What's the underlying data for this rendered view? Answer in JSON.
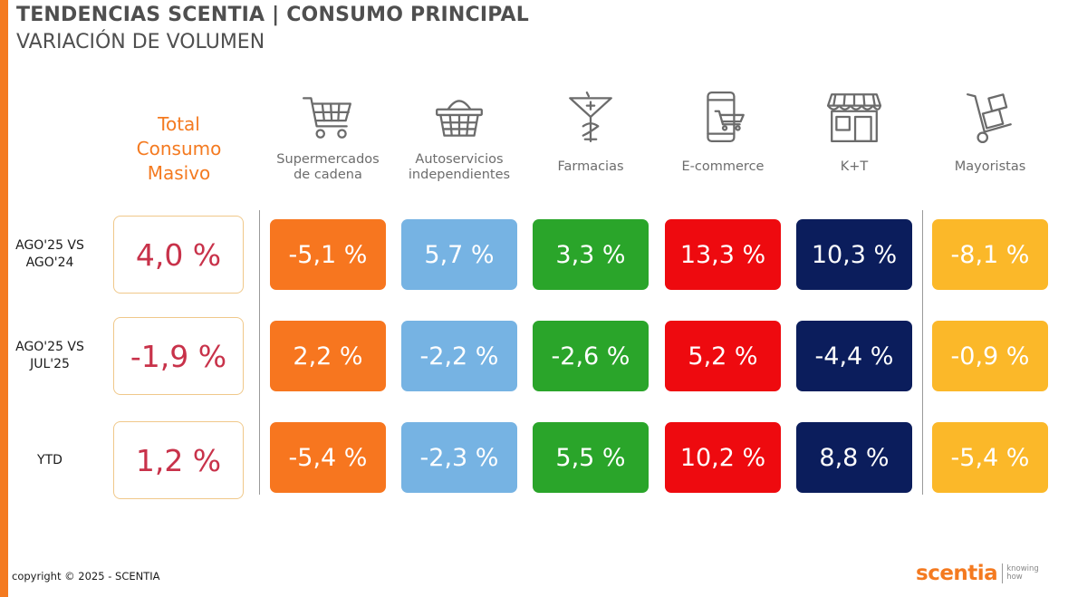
{
  "header": {
    "title": "TENDENCIAS SCENTIA  | CONSUMO PRINCIPAL",
    "subtitle": "VARIACIÓN DE VOLUMEN"
  },
  "total_header": [
    "Total",
    "Consumo",
    "Masivo"
  ],
  "columns": [
    {
      "label_lines": [
        "Supermercados",
        "de cadena"
      ],
      "icon": "shopping-cart-icon",
      "color": "#f7761f"
    },
    {
      "label_lines": [
        "Autoservicios",
        "independientes"
      ],
      "icon": "shopping-basket-icon",
      "color": "#76b3e3"
    },
    {
      "label_lines": [
        "Farmacias"
      ],
      "icon": "pharmacy-icon",
      "color": "#2aa52a"
    },
    {
      "label_lines": [
        "E-commerce"
      ],
      "icon": "mobile-cart-icon",
      "color": "#ee0a0f"
    },
    {
      "label_lines": [
        "K+T"
      ],
      "icon": "storefront-icon",
      "color": "#0b1d5c"
    },
    {
      "label_lines": [
        "Mayoristas"
      ],
      "icon": "hand-truck-icon",
      "color": "#fbb829"
    }
  ],
  "rows": [
    {
      "label_lines": [
        "AGO'25 VS",
        "AGO'24"
      ],
      "total": "4,0 %",
      "values": [
        "-5,1 %",
        "5,7 %",
        "3,3 %",
        "13,3 %",
        "10,3 %",
        "-8,1 %"
      ]
    },
    {
      "label_lines": [
        "AGO'25 VS",
        "JUL'25"
      ],
      "total": "-1,9 %",
      "values": [
        "2,2 %",
        "-2,2 %",
        "-2,6 %",
        "5,2 %",
        "-4,4 %",
        "-0,9 %"
      ]
    },
    {
      "label_lines": [
        "YTD"
      ],
      "total": "1,2 %",
      "values": [
        "-5,4 %",
        "-2,3 %",
        "5,5 %",
        "10,2 %",
        "8,8 %",
        "-5,4 %"
      ]
    }
  ],
  "chart_data": {
    "type": "table",
    "title": "VARIACIÓN DE VOLUMEN",
    "unit": "%",
    "columns": [
      "Total Consumo Masivo",
      "Supermercados de cadena",
      "Autoservicios independientes",
      "Farmacias",
      "E-commerce",
      "K+T",
      "Mayoristas"
    ],
    "rows": [
      "AGO'25 VS AGO'24",
      "AGO'25 VS JUL'25",
      "YTD"
    ],
    "values": [
      [
        4.0,
        -5.1,
        5.7,
        3.3,
        13.3,
        10.3,
        -8.1
      ],
      [
        -1.9,
        2.2,
        -2.2,
        -2.6,
        5.2,
        -4.4,
        -0.9
      ],
      [
        1.2,
        -5.4,
        -2.3,
        5.5,
        10.2,
        8.8,
        -5.4
      ]
    ]
  },
  "footer": {
    "copyright": "copyright © 2025 - SCENTIA",
    "logo_word": "scentia",
    "logo_tag": [
      "knowing",
      "how"
    ]
  },
  "accent_color": "#f47a20"
}
